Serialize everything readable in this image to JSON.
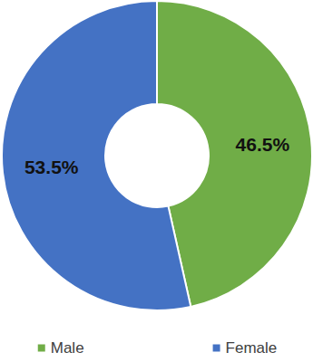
{
  "chart_data": {
    "type": "pie",
    "categories": [
      "Male",
      "Female"
    ],
    "values": [
      46.5,
      53.5
    ],
    "value_labels": [
      "46.5%",
      "53.5%"
    ],
    "colors": [
      "#70ad47",
      "#4472c4"
    ],
    "data_labels": true,
    "legend": "bottom"
  }
}
